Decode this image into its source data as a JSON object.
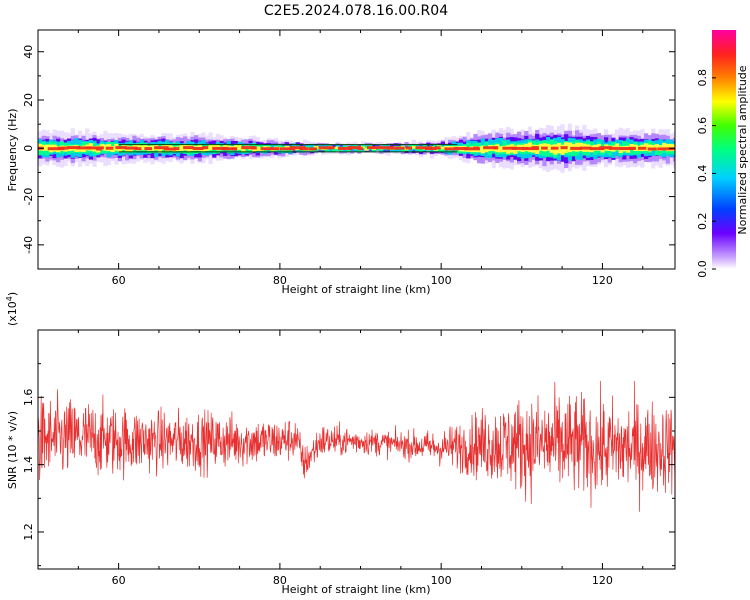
{
  "figure": {
    "title": "C2E5.2024.078.16.00.R04"
  },
  "chart_data": [
    {
      "type": "heatmap",
      "title": "C2E5.2024.078.16.00.R04",
      "xlabel": "Height of straight line (km)",
      "ylabel": "Frequency (Hz)",
      "xlim": [
        50,
        129
      ],
      "ylim": [
        -50,
        49
      ],
      "xticks": [
        60,
        80,
        100,
        120
      ],
      "yticks": [
        -40,
        -20,
        0,
        20,
        40
      ],
      "colorbar": {
        "label": "Normalized spectral amplitude",
        "range": [
          0,
          1
        ],
        "ticks": [
          "0.0",
          "0.2",
          "0.4",
          "0.6",
          "0.8"
        ],
        "tick_values": [
          0,
          0.2,
          0.4,
          0.6,
          0.8
        ]
      },
      "spectral_peak": {
        "description": "narrow band of high amplitude centred near 0 Hz",
        "center_frequency_hz": 0,
        "band_halfwidth_hz_by_height": [
          {
            "x": 50,
            "halfwidth": 3
          },
          {
            "x": 55,
            "halfwidth": 3
          },
          {
            "x": 60,
            "halfwidth": 2.5
          },
          {
            "x": 65,
            "halfwidth": 2.5
          },
          {
            "x": 70,
            "halfwidth": 2.5
          },
          {
            "x": 75,
            "halfwidth": 2
          },
          {
            "x": 80,
            "halfwidth": 1.5
          },
          {
            "x": 85,
            "halfwidth": 1
          },
          {
            "x": 90,
            "halfwidth": 1
          },
          {
            "x": 95,
            "halfwidth": 1
          },
          {
            "x": 100,
            "halfwidth": 1.5
          },
          {
            "x": 105,
            "halfwidth": 3
          },
          {
            "x": 110,
            "halfwidth": 3.5
          },
          {
            "x": 115,
            "halfwidth": 4
          },
          {
            "x": 120,
            "halfwidth": 3
          },
          {
            "x": 125,
            "halfwidth": 3
          },
          {
            "x": 129,
            "halfwidth": 3
          }
        ]
      },
      "grid": false
    },
    {
      "type": "line",
      "xlabel": "Height of straight line (km)",
      "ylabel": "SNR (10 * v/v)",
      "y_multiplier": "(x10^4)",
      "xlim": [
        50,
        129
      ],
      "ylim": [
        1.09,
        1.8
      ],
      "xticks": [
        60,
        80,
        100,
        120
      ],
      "yticks": [
        1.2,
        1.4,
        1.6
      ],
      "series": [
        {
          "color": "#e83030",
          "envelope": [
            {
              "x": 50,
              "mean": 1.47,
              "spread": 0.1
            },
            {
              "x": 55,
              "mean": 1.48,
              "spread": 0.09
            },
            {
              "x": 60,
              "mean": 1.47,
              "spread": 0.08
            },
            {
              "x": 65,
              "mean": 1.47,
              "spread": 0.07
            },
            {
              "x": 70,
              "mean": 1.47,
              "spread": 0.07
            },
            {
              "x": 75,
              "mean": 1.47,
              "spread": 0.06
            },
            {
              "x": 80,
              "mean": 1.47,
              "spread": 0.05
            },
            {
              "x": 82,
              "mean": 1.48,
              "spread": 0.05
            },
            {
              "x": 83,
              "mean": 1.4,
              "spread": 0.04
            },
            {
              "x": 85,
              "mean": 1.47,
              "spread": 0.04
            },
            {
              "x": 90,
              "mean": 1.47,
              "spread": 0.03
            },
            {
              "x": 95,
              "mean": 1.46,
              "spread": 0.03
            },
            {
              "x": 100,
              "mean": 1.45,
              "spread": 0.04
            },
            {
              "x": 105,
              "mean": 1.46,
              "spread": 0.08
            },
            {
              "x": 110,
              "mean": 1.46,
              "spread": 0.11
            },
            {
              "x": 115,
              "mean": 1.46,
              "spread": 0.12
            },
            {
              "x": 120,
              "mean": 1.45,
              "spread": 0.11
            },
            {
              "x": 125,
              "mean": 1.45,
              "spread": 0.11
            },
            {
              "x": 129,
              "mean": 1.45,
              "spread": 0.1
            }
          ]
        }
      ],
      "grid": false
    }
  ]
}
